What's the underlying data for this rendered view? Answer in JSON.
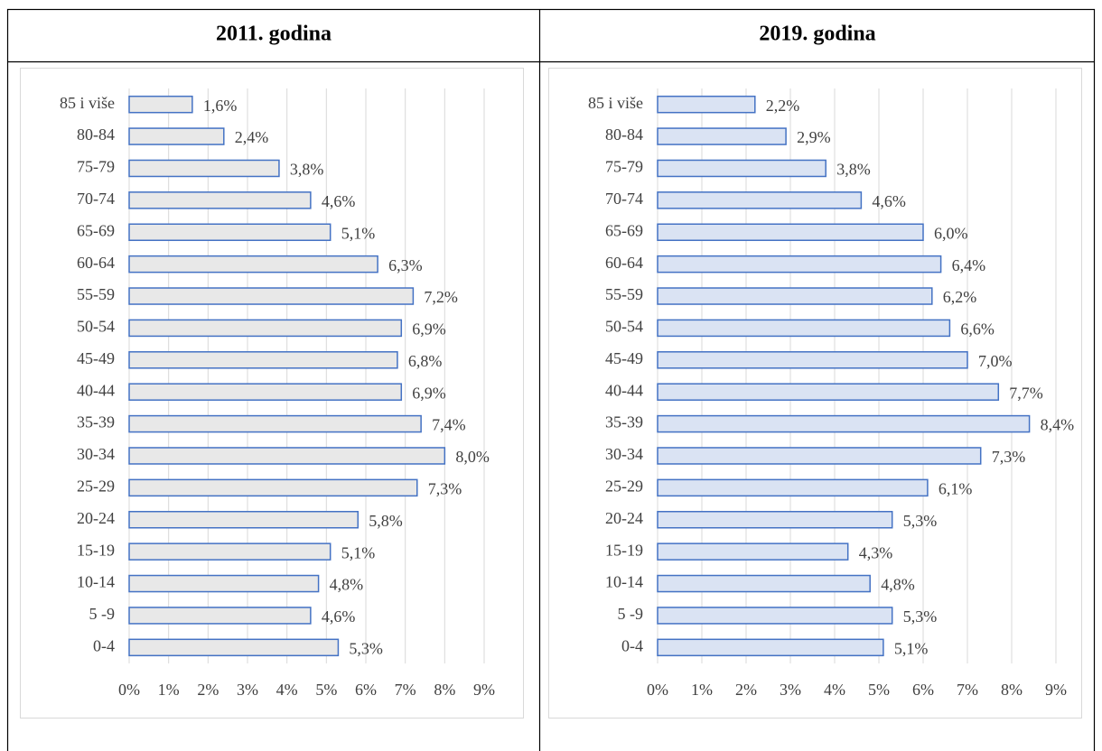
{
  "chart_data": [
    {
      "type": "bar",
      "orientation": "horizontal",
      "title": "2011. godina",
      "categories": [
        "85 i više",
        "80-84",
        "75-79",
        "70-74",
        "65-69",
        "60-64",
        "55-59",
        "50-54",
        "45-49",
        "40-44",
        "35-39",
        "30-34",
        "25-29",
        "20-24",
        "15-19",
        "10-14",
        "5 -9",
        "0-4"
      ],
      "values": [
        1.6,
        2.4,
        3.8,
        4.6,
        5.1,
        6.3,
        7.2,
        6.9,
        6.8,
        6.9,
        7.4,
        8.0,
        7.3,
        5.8,
        5.1,
        4.8,
        4.6,
        5.3
      ],
      "value_labels": [
        "1,6%",
        "2,4%",
        "3,8%",
        "4,6%",
        "5,1%",
        "6,3%",
        "7,2%",
        "6,9%",
        "6,8%",
        "6,9%",
        "7,4%",
        "8,0%",
        "7,3%",
        "5,8%",
        "5,1%",
        "4,8%",
        "4,6%",
        "5,3%"
      ],
      "color": "#e8e8e8",
      "edgecolor": "#4472c4",
      "grid": true,
      "xlim": [
        0,
        9
      ],
      "xticks": [
        {
          "value": 0,
          "label": "0%"
        },
        {
          "value": 1,
          "label": "1%"
        },
        {
          "value": 2,
          "label": "2%"
        },
        {
          "value": 3,
          "label": "3%"
        },
        {
          "value": 4,
          "label": "4%"
        },
        {
          "value": 5,
          "label": "5%"
        },
        {
          "value": 6,
          "label": "6%"
        },
        {
          "value": 7,
          "label": "7%"
        },
        {
          "value": 8,
          "label": "8%"
        },
        {
          "value": 9,
          "label": "9%"
        }
      ]
    },
    {
      "type": "bar",
      "orientation": "horizontal",
      "title": "2019. godina",
      "categories": [
        "85 i više",
        "80-84",
        "75-79",
        "70-74",
        "65-69",
        "60-64",
        "55-59",
        "50-54",
        "45-49",
        "40-44",
        "35-39",
        "30-34",
        "25-29",
        "20-24",
        "15-19",
        "10-14",
        "5 -9",
        "0-4"
      ],
      "values": [
        2.2,
        2.9,
        3.8,
        4.6,
        6.0,
        6.4,
        6.2,
        6.6,
        7.0,
        7.7,
        8.4,
        7.3,
        6.1,
        5.3,
        4.3,
        4.8,
        5.3,
        5.1
      ],
      "value_labels": [
        "2,2%",
        "2,9%",
        "3,8%",
        "4,6%",
        "6,0%",
        "6,4%",
        "6,2%",
        "6,6%",
        "7,0%",
        "7,7%",
        "8,4%",
        "7,3%",
        "6,1%",
        "5,3%",
        "4,3%",
        "4,8%",
        "5,3%",
        "5,1%"
      ],
      "color": "#dae3f3",
      "edgecolor": "#4472c4",
      "grid": true,
      "xlim": [
        0,
        9
      ],
      "xticks": [
        {
          "value": 0,
          "label": "0%"
        },
        {
          "value": 1,
          "label": "1%"
        },
        {
          "value": 2,
          "label": "2%"
        },
        {
          "value": 3,
          "label": "3%"
        },
        {
          "value": 4,
          "label": "4%"
        },
        {
          "value": 5,
          "label": "5%"
        },
        {
          "value": 6,
          "label": "6%"
        },
        {
          "value": 7,
          "label": "7%"
        },
        {
          "value": 8,
          "label": "8%"
        },
        {
          "value": 9,
          "label": "9%"
        }
      ]
    }
  ]
}
